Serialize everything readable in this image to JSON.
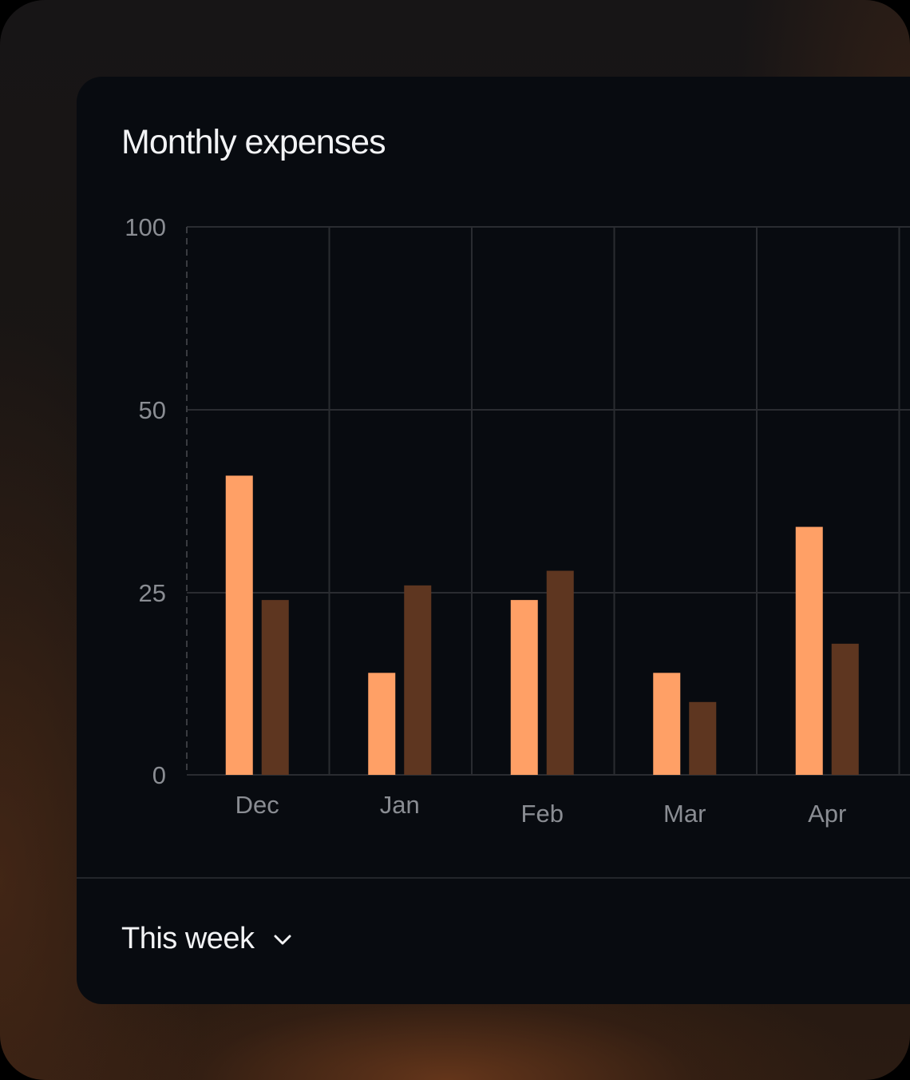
{
  "card": {
    "title": "Monthly expenses"
  },
  "footer": {
    "period_label": "This week",
    "period_icon": "chevron-down-icon"
  },
  "colors": {
    "background": "#080b10",
    "series_primary": "#ffa066",
    "series_secondary": "#5e3620",
    "grid": "#2a2c31",
    "text": "#f2f3f5",
    "tick_text": "#8a8d93"
  },
  "chart_data": {
    "type": "bar",
    "title": "Monthly expenses",
    "categories": [
      "Dec",
      "Jan",
      "Feb",
      "Mar",
      "Apr"
    ],
    "series": [
      {
        "values": [
          41,
          14,
          24,
          14,
          34
        ]
      },
      {
        "values": [
          24,
          26,
          28,
          10,
          18
        ]
      }
    ],
    "y_ticks": [
      "0",
      "25",
      "50",
      "100"
    ],
    "ylim": [
      0,
      100
    ],
    "grid": true,
    "legend": "none"
  }
}
